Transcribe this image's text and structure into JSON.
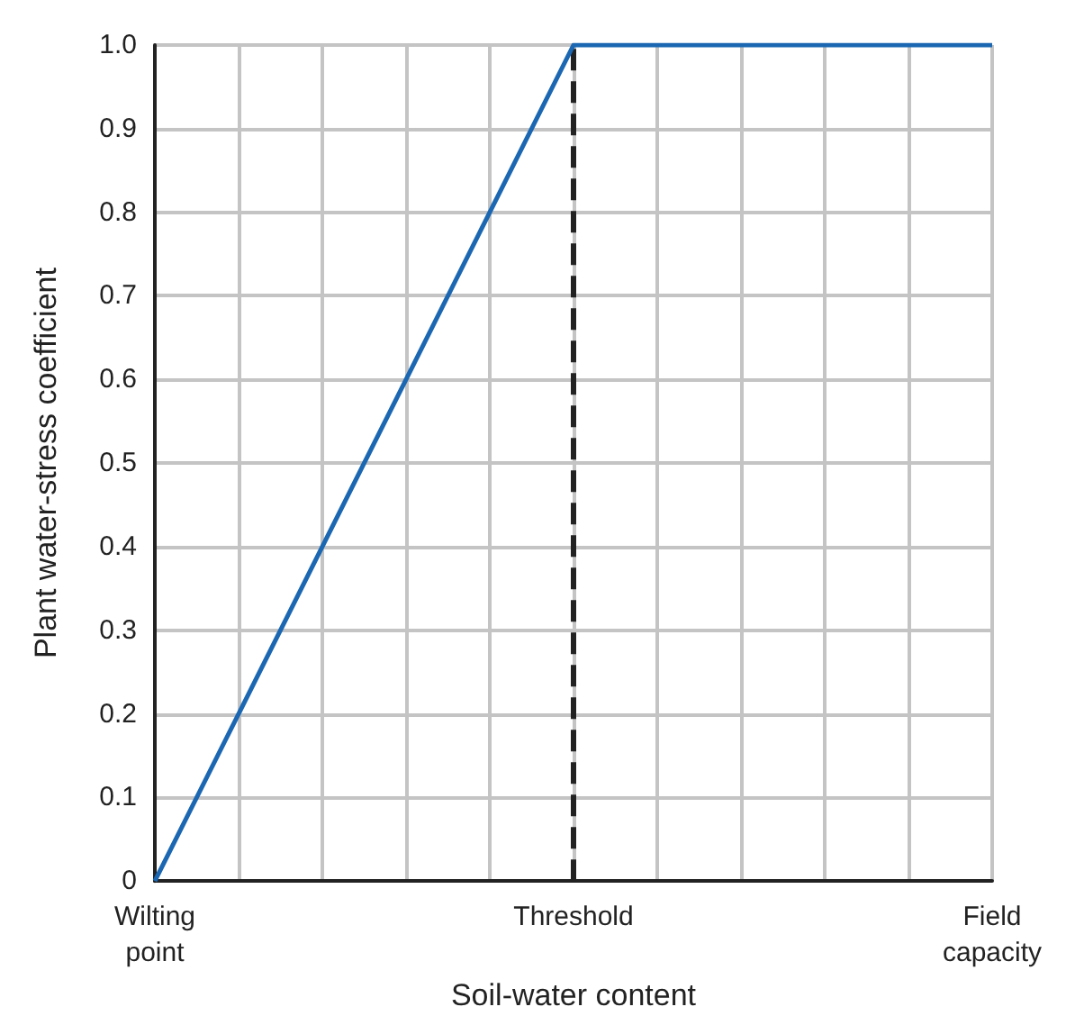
{
  "chart_data": {
    "type": "line",
    "xlabel": "Soil-water content",
    "ylabel": "Plant water-stress coefficient",
    "categories": [
      "Wilting point",
      null,
      null,
      null,
      null,
      "Threshold",
      null,
      null,
      null,
      null,
      "Field capacity"
    ],
    "series": [
      {
        "color": "#1b67b2",
        "values": [
          0,
          0.2,
          0.4,
          0.6,
          0.8,
          1,
          1,
          1,
          1,
          1,
          1
        ]
      }
    ],
    "ylim": [
      0,
      1
    ],
    "yticks": [
      0,
      0.1,
      0.2,
      0.3,
      0.4,
      0.5,
      0.6,
      0.7,
      0.8,
      0.9,
      {
        "value": 1,
        "label": "1.0"
      }
    ],
    "ref_lines": [
      {
        "axis": "x",
        "value": "Threshold",
        "color": "#222222",
        "line_style": "dashed"
      }
    ],
    "grid": true,
    "marker": "none",
    "line_style": "solid"
  }
}
